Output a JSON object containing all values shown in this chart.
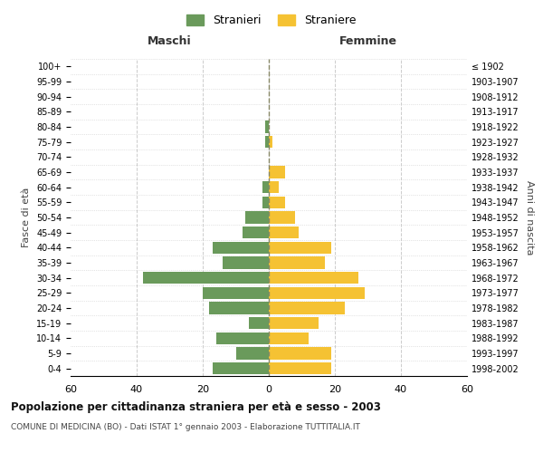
{
  "age_groups": [
    "0-4",
    "5-9",
    "10-14",
    "15-19",
    "20-24",
    "25-29",
    "30-34",
    "35-39",
    "40-44",
    "45-49",
    "50-54",
    "55-59",
    "60-64",
    "65-69",
    "70-74",
    "75-79",
    "80-84",
    "85-89",
    "90-94",
    "95-99",
    "100+"
  ],
  "birth_years": [
    "1998-2002",
    "1993-1997",
    "1988-1992",
    "1983-1987",
    "1978-1982",
    "1973-1977",
    "1968-1972",
    "1963-1967",
    "1958-1962",
    "1953-1957",
    "1948-1952",
    "1943-1947",
    "1938-1942",
    "1933-1937",
    "1928-1932",
    "1923-1927",
    "1918-1922",
    "1913-1917",
    "1908-1912",
    "1903-1907",
    "≤ 1902"
  ],
  "maschi": [
    17,
    10,
    16,
    6,
    18,
    20,
    38,
    14,
    17,
    8,
    7,
    2,
    2,
    0,
    0,
    1,
    1,
    0,
    0,
    0,
    0
  ],
  "femmine": [
    19,
    19,
    12,
    15,
    23,
    29,
    27,
    17,
    19,
    9,
    8,
    5,
    3,
    5,
    0,
    1,
    0,
    0,
    0,
    0,
    0
  ],
  "color_maschi": "#6a9a5b",
  "color_femmine": "#f5c233",
  "title": "Popolazione per cittadinanza straniera per età e sesso - 2003",
  "subtitle": "COMUNE DI MEDICINA (BO) - Dati ISTAT 1° gennaio 2003 - Elaborazione TUTTITALIA.IT",
  "xlabel_left": "Maschi",
  "xlabel_right": "Femmine",
  "ylabel_left": "Fasce di età",
  "ylabel_right": "Anni di nascita",
  "legend_maschi": "Stranieri",
  "legend_femmine": "Straniere",
  "xlim": 60,
  "background_color": "#ffffff",
  "grid_color": "#cccccc"
}
